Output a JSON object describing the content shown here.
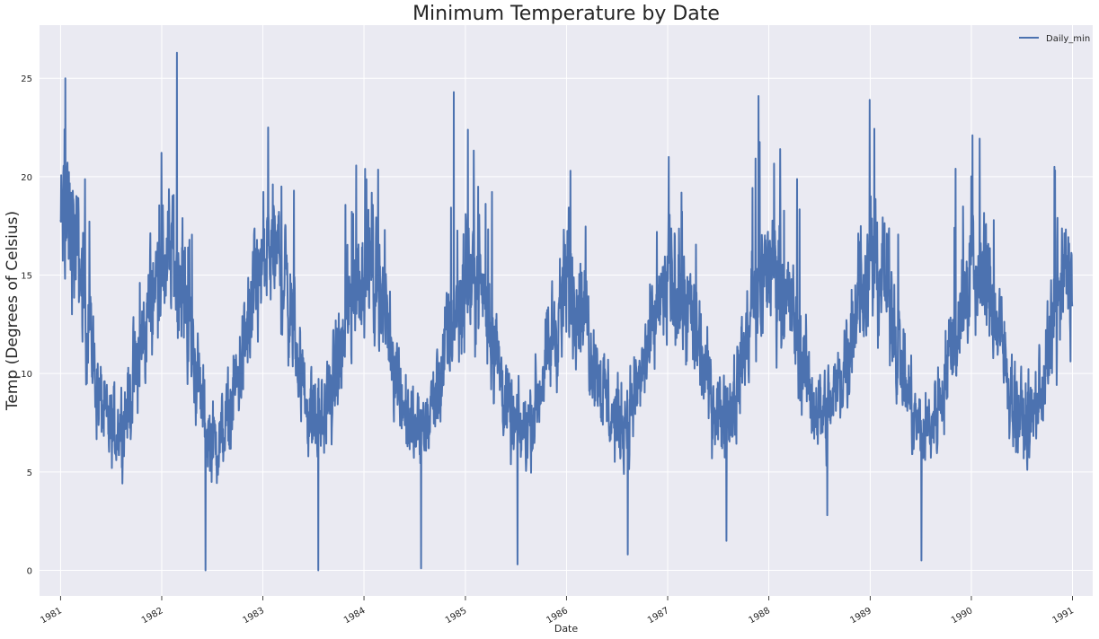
{
  "chart_data": {
    "type": "line",
    "title": "Minimum Temperature by Date",
    "xlabel": "Date",
    "ylabel": "Temp (Degrees of Celsius)",
    "x_range": [
      "1980-10-17",
      "1991-03-15"
    ],
    "ylim": [
      -1.3,
      27.7
    ],
    "y_ticks": [
      0,
      5,
      10,
      15,
      20,
      25
    ],
    "x_ticks": [
      {
        "label": "1981",
        "date": "1981-01-01"
      },
      {
        "label": "1982",
        "date": "1982-01-01"
      },
      {
        "label": "1983",
        "date": "1983-01-01"
      },
      {
        "label": "1984",
        "date": "1984-01-01"
      },
      {
        "label": "1985",
        "date": "1985-01-01"
      },
      {
        "label": "1986",
        "date": "1986-01-01"
      },
      {
        "label": "1987",
        "date": "1987-01-01"
      },
      {
        "label": "1988",
        "date": "1988-01-01"
      },
      {
        "label": "1989",
        "date": "1989-01-01"
      },
      {
        "label": "1990",
        "date": "1990-01-01"
      },
      {
        "label": "1991",
        "date": "1991-01-01"
      }
    ],
    "grid": true,
    "legend_position": "top-right",
    "series": [
      {
        "name": "Daily_min",
        "color": "#4c72b0",
        "start_date": "1981-01-01",
        "end_date": "1990-12-31",
        "seasonal_annual_peak_dates": [
          "1981-01-20",
          "1982-02-05",
          "1983-02-10",
          "1984-01-15",
          "1985-02-01",
          "1986-01-20",
          "1987-01-25",
          "1988-01-10",
          "1989-01-20",
          "1990-01-25"
        ],
        "seasonal_annual_peak_values": [
          17.5,
          16.0,
          16.0,
          15.5,
          15.0,
          14.0,
          14.5,
          15.5,
          15.5,
          15.0
        ],
        "seasonal_annual_trough_dates": [
          "1981-07-05",
          "1982-07-10",
          "1983-07-15",
          "1984-07-10",
          "1985-07-15",
          "1986-07-10",
          "1987-07-20",
          "1988-07-15",
          "1989-07-10",
          "1990-07-15"
        ],
        "seasonal_annual_trough_values": [
          7.0,
          6.5,
          7.5,
          7.0,
          7.0,
          7.5,
          8.0,
          8.0,
          7.0,
          7.5
        ],
        "extremes": [
          {
            "date": "1981-01-18",
            "value": 25.0
          },
          {
            "date": "1982-02-25",
            "value": 26.3
          },
          {
            "date": "1982-06-08",
            "value": 0.0
          },
          {
            "date": "1983-01-20",
            "value": 22.5
          },
          {
            "date": "1983-07-20",
            "value": 0.0
          },
          {
            "date": "1984-01-05",
            "value": 20.4
          },
          {
            "date": "1984-07-25",
            "value": 0.1
          },
          {
            "date": "1984-11-20",
            "value": 24.3
          },
          {
            "date": "1985-07-08",
            "value": 0.3
          },
          {
            "date": "1986-01-15",
            "value": 20.3
          },
          {
            "date": "1986-08-10",
            "value": 0.8
          },
          {
            "date": "1987-01-05",
            "value": 21.0
          },
          {
            "date": "1987-08-01",
            "value": 1.5
          },
          {
            "date": "1987-11-25",
            "value": 24.1
          },
          {
            "date": "1988-07-30",
            "value": 2.8
          },
          {
            "date": "1988-12-30",
            "value": 23.9
          },
          {
            "date": "1989-07-05",
            "value": 0.5
          },
          {
            "date": "1990-01-05",
            "value": 22.1
          },
          {
            "date": "1990-10-28",
            "value": 20.5
          }
        ]
      }
    ]
  }
}
